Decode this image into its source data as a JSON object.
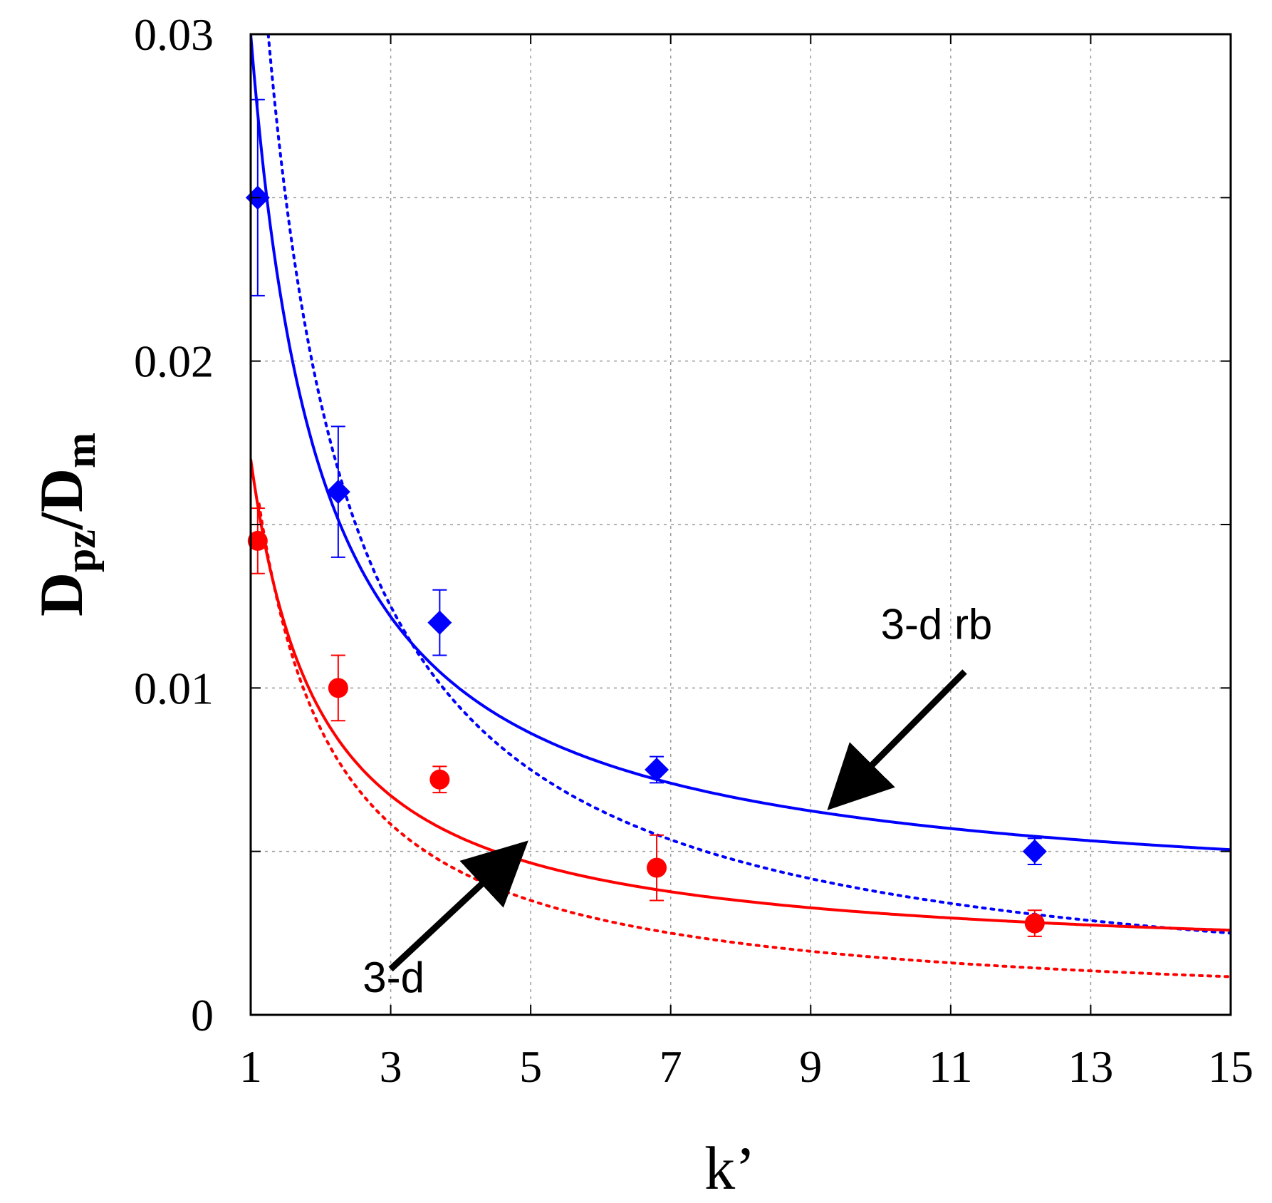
{
  "chart_data": {
    "type": "scatter",
    "xlabel": "k’",
    "ylabel_main": "D",
    "ylabel_sub1": "pz",
    "ylabel_mid": "/D",
    "ylabel_sub2": "m",
    "xlim": [
      1,
      15
    ],
    "ylim": [
      0,
      0.03
    ],
    "xticks": [
      1,
      3,
      5,
      7,
      9,
      11,
      13,
      15
    ],
    "xtick_labels": [
      "1",
      "3",
      "5",
      "7",
      "9",
      "11",
      "13",
      "15"
    ],
    "yticks": [
      0,
      0.005,
      0.01,
      0.015,
      0.02,
      0.025,
      0.03
    ],
    "ytick_labels": [
      "0",
      "",
      "0.01",
      "",
      "0.02",
      "",
      "0.03"
    ],
    "grid": true,
    "series": [
      {
        "marker": "diamond",
        "color": "#0000ff",
        "points": [
          {
            "x": 1.1,
            "y": 0.025,
            "err": 0.003
          },
          {
            "x": 2.25,
            "y": 0.016,
            "err": 0.002
          },
          {
            "x": 3.7,
            "y": 0.012,
            "err": 0.001
          },
          {
            "x": 6.8,
            "y": 0.0075,
            "err": 0.0004
          },
          {
            "x": 12.2,
            "y": 0.005,
            "err": 0.0004
          }
        ]
      },
      {
        "marker": "circle",
        "color": "#ff0000",
        "points": [
          {
            "x": 1.1,
            "y": 0.0145,
            "err": 0.001
          },
          {
            "x": 2.25,
            "y": 0.01,
            "err": 0.001
          },
          {
            "x": 3.7,
            "y": 0.0072,
            "err": 0.0004
          },
          {
            "x": 6.8,
            "y": 0.0045,
            "err": 0.001
          },
          {
            "x": 12.2,
            "y": 0.0028,
            "err": 0.0004
          }
        ]
      }
    ],
    "curves": [
      {
        "style": "solid",
        "color": "#0000ff",
        "model": "a + b/x",
        "a": 0.00327,
        "b": 0.02673,
        "x_min": 1.0,
        "x_max": 15.0
      },
      {
        "style": "dotted",
        "color": "#0000ff",
        "model": "c/x",
        "c": 0.0375,
        "x_min": 1.25,
        "x_max": 15.0
      },
      {
        "style": "solid",
        "color": "#ff0000",
        "model": "a + b/x",
        "a": 0.00156,
        "b": 0.01544,
        "x_min": 1.0,
        "x_max": 15.0
      },
      {
        "style": "dotted",
        "color": "#ff0000",
        "model": "c/x",
        "c": 0.0175,
        "x_min": 1.12,
        "x_max": 15.0
      }
    ],
    "annotations": [
      {
        "text": "3-d rb",
        "label_x": 10.0,
        "label_y": 0.0115,
        "arrow_from": [
          11.2,
          0.0105
        ],
        "arrow_to": [
          9.3,
          0.0064
        ]
      },
      {
        "text": "3-d",
        "label_x": 2.6,
        "label_y": 0.0007,
        "arrow_from": [
          3.0,
          0.0014
        ],
        "arrow_to": [
          4.9,
          0.0052
        ]
      }
    ]
  }
}
